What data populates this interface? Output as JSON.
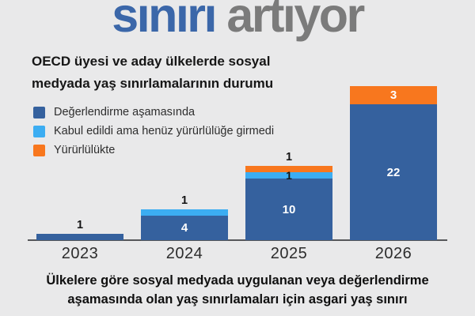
{
  "title": {
    "part1": "sınırı",
    "part2": " artıyor"
  },
  "subtitle": {
    "line1": "OECD üyesi ve aday ülkelerde sosyal",
    "line2": "medyada yaş sınırlamalarının durumu"
  },
  "caption": {
    "line1": "Ülkelere göre sosyal medyada uygulanan veya değerlendirme",
    "line2": "aşamasında olan yaş sınırlamaları için asgari yaş sınırı"
  },
  "colors": {
    "background": "#e9e9ea",
    "title_blue": "#3b67a9",
    "title_gray": "#7b7b7b",
    "dark_blue": "#35619e",
    "light_blue": "#3cadf2",
    "orange": "#f8771e",
    "axis": "#56575a",
    "text_dark": "#161616"
  },
  "chart_data": {
    "type": "bar",
    "stacked": true,
    "title": "sınırı artıyor",
    "xlabel": "",
    "ylabel": "",
    "grid": false,
    "legend_position": "top-left",
    "categories": [
      "2023",
      "2024",
      "2025",
      "2026"
    ],
    "series": [
      {
        "name": "Değerlendirme aşamasında",
        "color": "#35619e",
        "values": [
          1,
          4,
          10,
          22
        ]
      },
      {
        "name": "Kabul edildi ama henüz yürürlülüğe girmedi",
        "color": "#3cadf2",
        "values": [
          0,
          1,
          1,
          0
        ]
      },
      {
        "name": "Yürürlülükte",
        "color": "#f8771e",
        "values": [
          0,
          0,
          1,
          3
        ]
      }
    ],
    "totals": [
      1,
      5,
      12,
      25
    ],
    "ylim": [
      0,
      25
    ],
    "value_labels": true
  }
}
